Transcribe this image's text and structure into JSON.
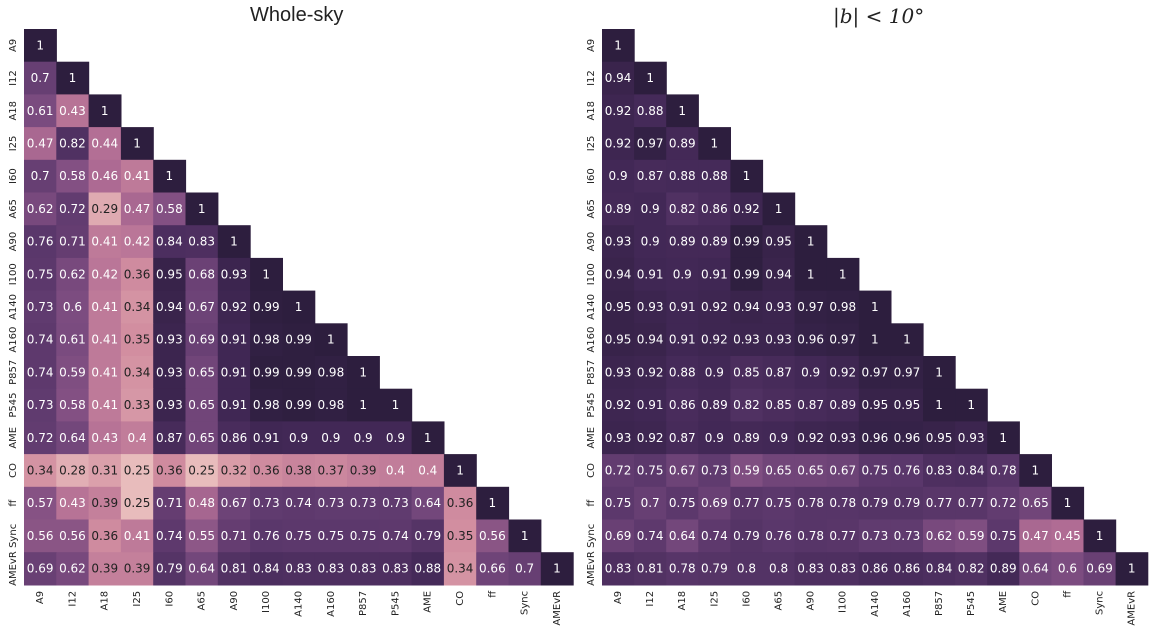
{
  "chart_data": [
    {
      "type": "heatmap",
      "title": "Whole-sky",
      "labels": [
        "A9",
        "I12",
        "A18",
        "I25",
        "I60",
        "A65",
        "A90",
        "I100",
        "A140",
        "A160",
        "P857",
        "P545",
        "AME",
        "CO",
        "ff",
        "Sync",
        "AMEvR"
      ],
      "rows": [
        [
          1
        ],
        [
          0.7,
          1
        ],
        [
          0.61,
          0.43,
          1
        ],
        [
          0.47,
          0.82,
          0.44,
          1
        ],
        [
          0.7,
          0.58,
          0.46,
          0.41,
          1
        ],
        [
          0.62,
          0.72,
          0.29,
          0.47,
          0.58,
          1
        ],
        [
          0.76,
          0.71,
          0.41,
          0.42,
          0.84,
          0.83,
          1
        ],
        [
          0.75,
          0.62,
          0.42,
          0.36,
          0.95,
          0.68,
          0.93,
          1
        ],
        [
          0.73,
          0.6,
          0.41,
          0.34,
          0.94,
          0.67,
          0.92,
          0.99,
          1
        ],
        [
          0.74,
          0.61,
          0.41,
          0.35,
          0.93,
          0.69,
          0.91,
          0.98,
          0.99,
          1
        ],
        [
          0.74,
          0.59,
          0.41,
          0.34,
          0.93,
          0.65,
          0.91,
          0.99,
          0.99,
          0.98,
          1
        ],
        [
          0.73,
          0.58,
          0.41,
          0.33,
          0.93,
          0.65,
          0.91,
          0.98,
          0.99,
          0.98,
          1,
          1
        ],
        [
          0.72,
          0.64,
          0.43,
          0.4,
          0.87,
          0.65,
          0.86,
          0.91,
          0.9,
          0.9,
          0.9,
          0.9,
          1
        ],
        [
          0.34,
          0.28,
          0.31,
          0.25,
          0.36,
          0.25,
          0.32,
          0.36,
          0.38,
          0.37,
          0.39,
          0.4,
          0.4,
          1
        ],
        [
          0.57,
          0.43,
          0.39,
          0.25,
          0.71,
          0.48,
          0.67,
          0.73,
          0.74,
          0.73,
          0.73,
          0.73,
          0.64,
          0.36,
          1
        ],
        [
          0.56,
          0.56,
          0.36,
          0.41,
          0.74,
          0.55,
          0.71,
          0.76,
          0.75,
          0.75,
          0.75,
          0.74,
          0.79,
          0.35,
          0.56,
          1
        ],
        [
          0.69,
          0.62,
          0.39,
          0.39,
          0.79,
          0.64,
          0.81,
          0.84,
          0.83,
          0.83,
          0.83,
          0.83,
          0.88,
          0.34,
          0.66,
          0.7,
          1
        ]
      ]
    },
    {
      "type": "heatmap",
      "title": "|b| < 10°",
      "labels": [
        "A9",
        "I12",
        "A18",
        "I25",
        "I60",
        "A65",
        "A90",
        "I100",
        "A140",
        "A160",
        "P857",
        "P545",
        "AME",
        "CO",
        "ff",
        "Sync",
        "AMEvR"
      ],
      "rows": [
        [
          1
        ],
        [
          0.94,
          1
        ],
        [
          0.92,
          0.88,
          1
        ],
        [
          0.92,
          0.97,
          0.89,
          1
        ],
        [
          0.9,
          0.87,
          0.88,
          0.88,
          1
        ],
        [
          0.89,
          0.9,
          0.82,
          0.86,
          0.92,
          1
        ],
        [
          0.93,
          0.9,
          0.89,
          0.89,
          0.99,
          0.95,
          1
        ],
        [
          0.94,
          0.91,
          0.9,
          0.91,
          0.99,
          0.94,
          1,
          1
        ],
        [
          0.95,
          0.93,
          0.91,
          0.92,
          0.94,
          0.93,
          0.97,
          0.98,
          1
        ],
        [
          0.95,
          0.94,
          0.91,
          0.92,
          0.93,
          0.93,
          0.96,
          0.97,
          1,
          1
        ],
        [
          0.93,
          0.92,
          0.88,
          0.9,
          0.85,
          0.87,
          0.9,
          0.92,
          0.97,
          0.97,
          1
        ],
        [
          0.92,
          0.91,
          0.86,
          0.89,
          0.82,
          0.85,
          0.87,
          0.89,
          0.95,
          0.95,
          1,
          1
        ],
        [
          0.93,
          0.92,
          0.87,
          0.9,
          0.89,
          0.9,
          0.92,
          0.93,
          0.96,
          0.96,
          0.95,
          0.93,
          1
        ],
        [
          0.72,
          0.75,
          0.67,
          0.73,
          0.59,
          0.65,
          0.65,
          0.67,
          0.75,
          0.76,
          0.83,
          0.84,
          0.78,
          1
        ],
        [
          0.75,
          0.7,
          0.75,
          0.69,
          0.77,
          0.75,
          0.78,
          0.78,
          0.79,
          0.79,
          0.77,
          0.77,
          0.72,
          0.65,
          1
        ],
        [
          0.69,
          0.74,
          0.64,
          0.74,
          0.79,
          0.76,
          0.78,
          0.77,
          0.73,
          0.73,
          0.62,
          0.59,
          0.75,
          0.47,
          0.45,
          1
        ],
        [
          0.83,
          0.81,
          0.78,
          0.79,
          0.8,
          0.8,
          0.83,
          0.83,
          0.86,
          0.86,
          0.84,
          0.82,
          0.89,
          0.64,
          0.6,
          0.69,
          1
        ]
      ]
    }
  ]
}
